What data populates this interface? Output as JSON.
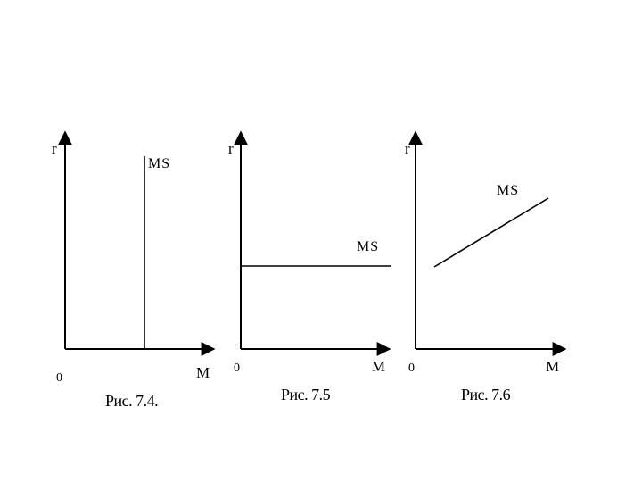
{
  "panels": [
    {
      "id": "7.4",
      "y_axis_label": "r",
      "x_axis_label": "M",
      "origin_label": "0",
      "curve_label": "MS",
      "curve_shape": "vertical",
      "caption": "Рис. 7.4."
    },
    {
      "id": "7.5",
      "y_axis_label": "r",
      "x_axis_label": "M",
      "origin_label": "0",
      "curve_label": "MS",
      "curve_shape": "horizontal",
      "caption": "Рис. 7.5"
    },
    {
      "id": "7.6",
      "y_axis_label": "r",
      "x_axis_label": "M",
      "origin_label": "0",
      "curve_label": "MS",
      "curve_shape": "upward-sloping",
      "caption": "Рис. 7.6"
    }
  ],
  "colors": {
    "line": "#000000",
    "background": "#ffffff"
  }
}
